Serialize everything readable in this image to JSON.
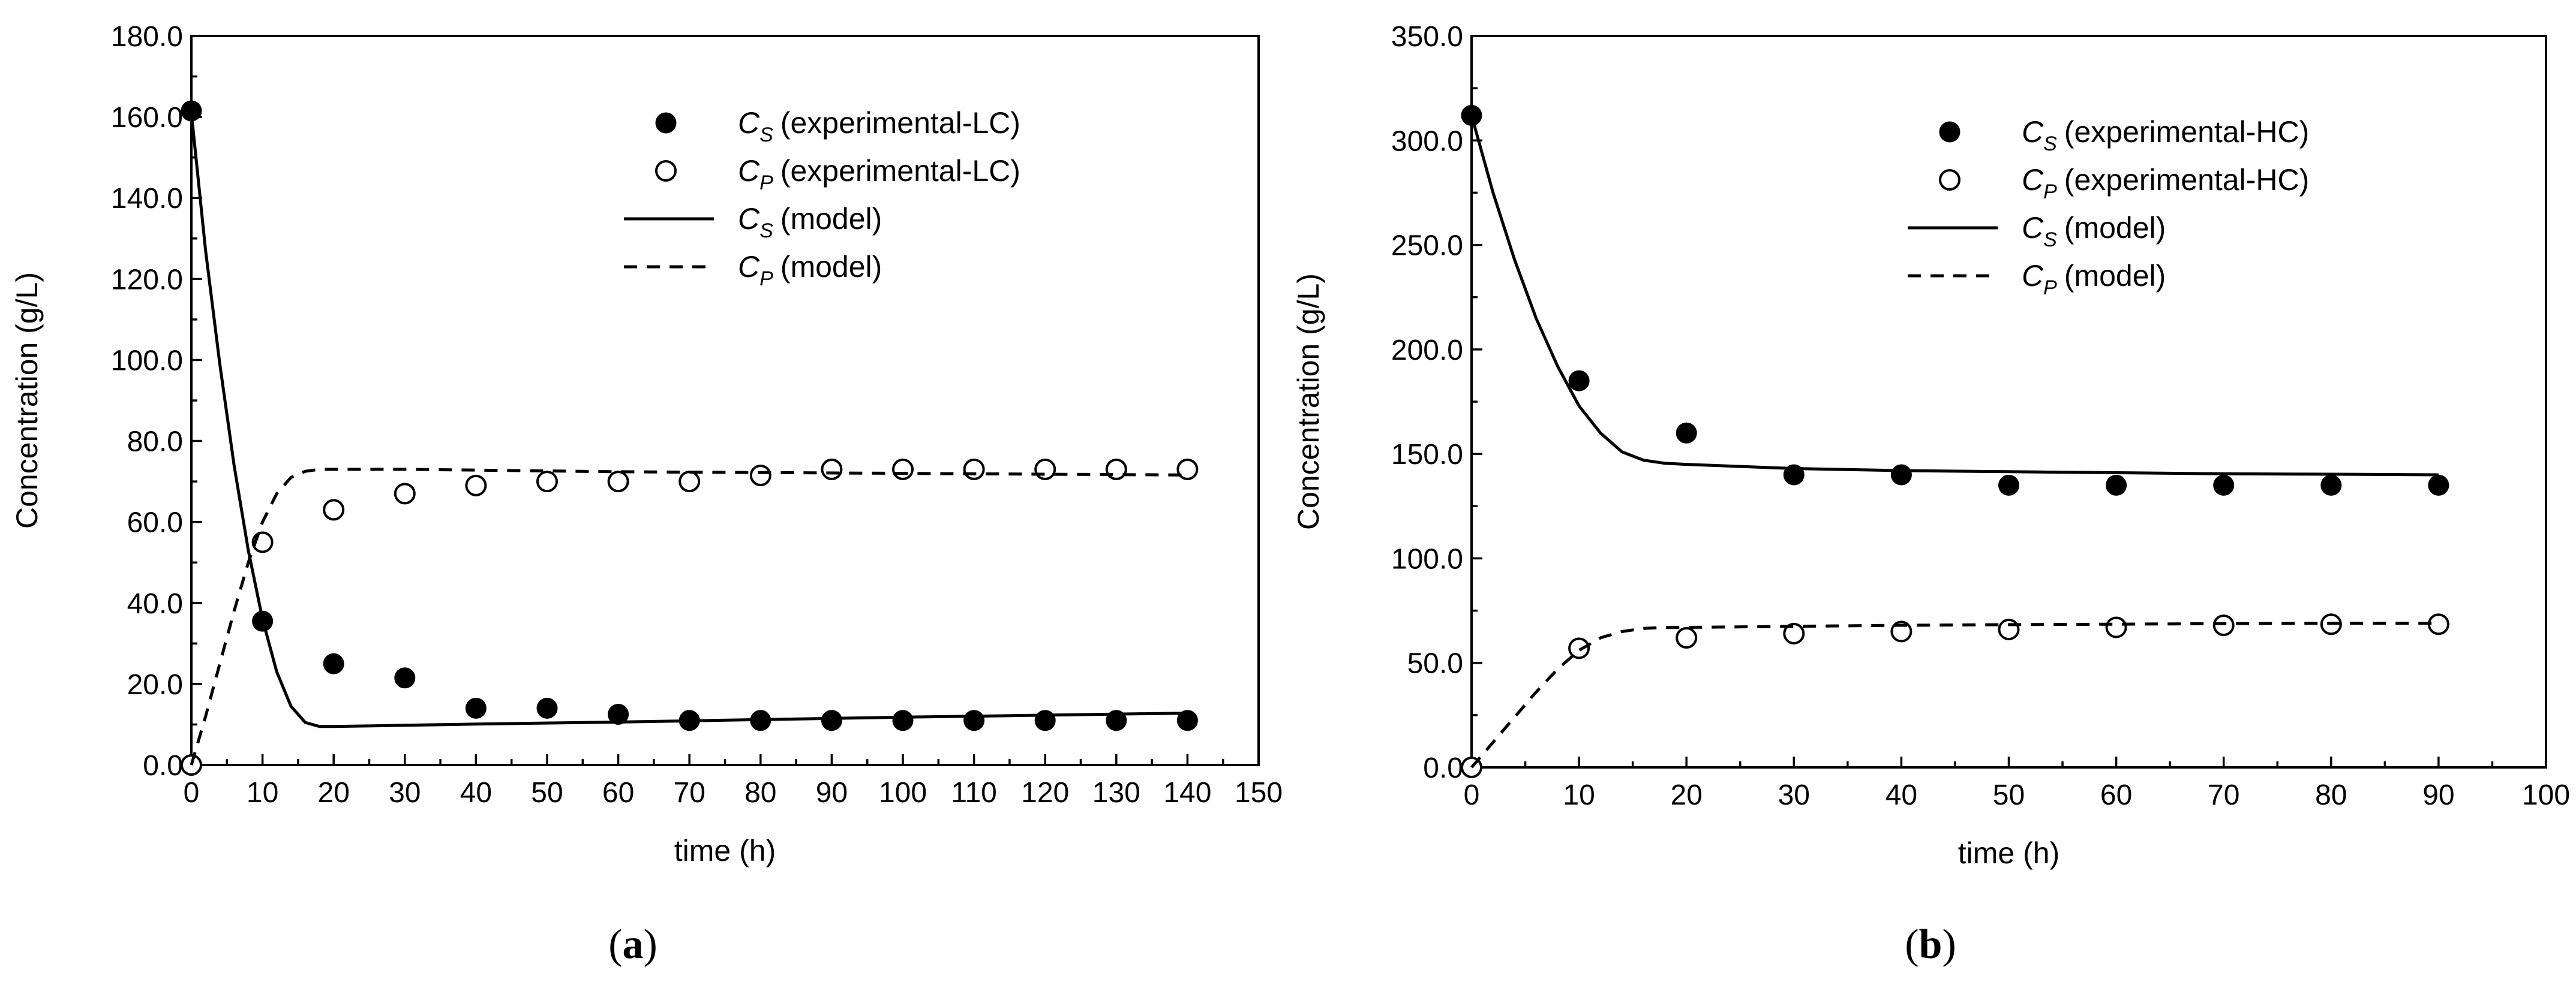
{
  "chart_data": [
    {
      "type": "scatter",
      "panel_label": "a",
      "xlabel": "time (h)",
      "ylabel": "Concentration (g/L)",
      "xlim": [
        0,
        150
      ],
      "ylim": [
        0,
        180
      ],
      "x_ticks": [
        0,
        10,
        20,
        30,
        40,
        50,
        60,
        70,
        80,
        90,
        100,
        110,
        120,
        130,
        140,
        150
      ],
      "y_ticks": [
        "0.0",
        "20.0",
        "40.0",
        "60.0",
        "80.0",
        "100.0",
        "120.0",
        "140.0",
        "160.0",
        "180.0"
      ],
      "legend_position": "top-right",
      "series": [
        {
          "kind": "points-filled",
          "symbol": "C",
          "sub": "S",
          "label": "(experimental-LC)",
          "x": [
            0,
            10,
            20,
            30,
            40,
            50,
            60,
            70,
            80,
            90,
            100,
            110,
            120,
            130,
            140
          ],
          "y": [
            161.5,
            35.5,
            25,
            21.5,
            14,
            14,
            12.5,
            11,
            11,
            11,
            11,
            11,
            11,
            11,
            11
          ]
        },
        {
          "kind": "points-open",
          "symbol": "C",
          "sub": "P",
          "label": "(experimental-LC)",
          "x": [
            0,
            10,
            20,
            30,
            40,
            50,
            60,
            70,
            80,
            90,
            100,
            110,
            120,
            130,
            140
          ],
          "y": [
            0,
            55,
            63,
            67,
            69,
            70,
            70,
            70,
            71.5,
            73,
            73,
            73,
            73,
            73,
            73
          ]
        },
        {
          "kind": "line-solid",
          "symbol": "C",
          "sub": "S",
          "label": "(model)",
          "x": [
            0,
            2,
            4,
            6,
            8,
            10,
            12,
            14,
            16,
            18,
            20,
            30,
            40,
            60,
            80,
            100,
            120,
            140
          ],
          "y": [
            161,
            127,
            99,
            74,
            53,
            36,
            23,
            14.5,
            10.5,
            9.5,
            9.5,
            9.8,
            10.1,
            10.6,
            11.2,
            11.8,
            12.3,
            12.8
          ]
        },
        {
          "kind": "line-dashed",
          "symbol": "C",
          "sub": "P",
          "label": "(model)",
          "x": [
            0,
            2,
            4,
            6,
            8,
            10,
            12,
            14,
            16,
            18,
            20,
            30,
            40,
            60,
            80,
            100,
            120,
            140
          ],
          "y": [
            0,
            12,
            25,
            38,
            50,
            60,
            67,
            71,
            72.5,
            73,
            73,
            73,
            72.8,
            72.4,
            72.2,
            72,
            71.8,
            71.6
          ]
        }
      ]
    },
    {
      "type": "scatter",
      "panel_label": "b",
      "xlabel": "time (h)",
      "ylabel": "Concentration (g/L)",
      "xlim": [
        0,
        100
      ],
      "ylim": [
        0,
        350
      ],
      "x_ticks": [
        0,
        10,
        20,
        30,
        40,
        50,
        60,
        70,
        80,
        90,
        100
      ],
      "y_ticks": [
        "0.0",
        "50.0",
        "100.0",
        "150.0",
        "200.0",
        "250.0",
        "300.0",
        "350.0"
      ],
      "legend_position": "top-right",
      "series": [
        {
          "kind": "points-filled",
          "symbol": "C",
          "sub": "S",
          "label": "(experimental-HC)",
          "x": [
            0,
            10,
            20,
            30,
            40,
            50,
            60,
            70,
            80,
            90
          ],
          "y": [
            312,
            185,
            160,
            140,
            140,
            135,
            135,
            135,
            135,
            135
          ]
        },
        {
          "kind": "points-open",
          "symbol": "C",
          "sub": "P",
          "label": "(experimental-HC)",
          "x": [
            0,
            10,
            20,
            30,
            40,
            50,
            60,
            70,
            80,
            90
          ],
          "y": [
            0,
            57,
            62,
            64,
            65,
            66,
            67,
            68,
            68.5,
            68.5
          ]
        },
        {
          "kind": "line-solid",
          "symbol": "C",
          "sub": "S",
          "label": "(model)",
          "x": [
            0,
            2,
            4,
            6,
            8,
            10,
            12,
            14,
            16,
            18,
            20,
            30,
            40,
            50,
            60,
            70,
            80,
            90
          ],
          "y": [
            312,
            275,
            243,
            215,
            192,
            173,
            160,
            151,
            147,
            145.5,
            145,
            143,
            142,
            141.5,
            141,
            140.5,
            140.3,
            140
          ]
        },
        {
          "kind": "line-dashed",
          "symbol": "C",
          "sub": "P",
          "label": "(model)",
          "x": [
            0,
            2,
            4,
            6,
            8,
            10,
            12,
            14,
            16,
            18,
            20,
            30,
            40,
            50,
            60,
            70,
            80,
            90
          ],
          "y": [
            0,
            12,
            24,
            36,
            47,
            56,
            62,
            65,
            66.5,
            67,
            67,
            67.5,
            68,
            68.3,
            68.5,
            68.8,
            69,
            69
          ]
        }
      ]
    }
  ]
}
